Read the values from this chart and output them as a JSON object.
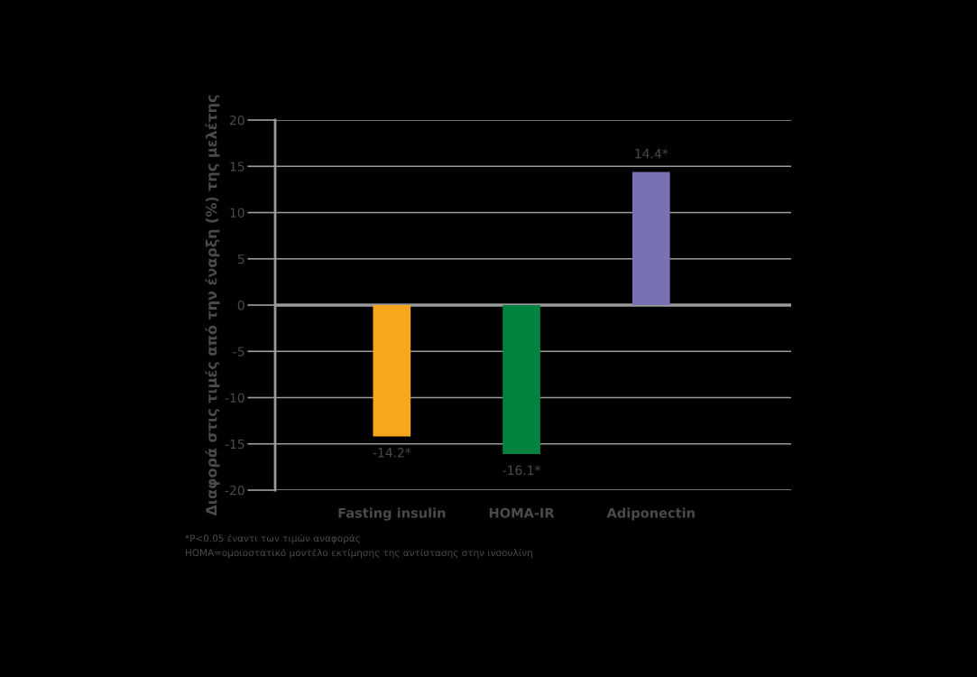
{
  "chart_data": {
    "type": "bar",
    "ylabel": "Διαφορά στις τιμές από την έναρξη (%) της μελέτης",
    "categories": [
      "Fasting insulin",
      "HOMA-IR",
      "Adiponectin"
    ],
    "values": [
      -14.2,
      -16.1,
      14.4
    ],
    "colors": [
      "#f8a61c",
      "#00833e",
      "#7871b4"
    ],
    "value_labels": [
      "-14.2*",
      "-16.1*",
      "14.4*"
    ],
    "ylim": [
      -20,
      20
    ],
    "yticks": [
      -20,
      -15,
      -10,
      -5,
      0,
      5,
      10,
      15,
      20
    ],
    "grid": "y",
    "annotations": [
      "*P<0.05 έναντι των τιμών αναφοράς",
      "HOMA=ομοιοστατικό μοντέλο εκτίμησης της αντίστασης στην ινσουλίνη"
    ]
  }
}
